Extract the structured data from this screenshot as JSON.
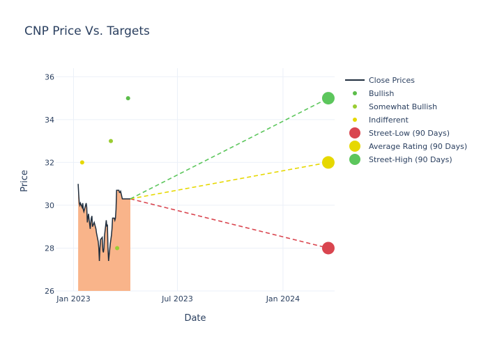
{
  "chart_data": {
    "type": "line",
    "title": "CNP Price Vs. Targets",
    "xlabel": "Date",
    "ylabel": "Price",
    "xlim": [
      "2022-12-01",
      "2024-03-31"
    ],
    "ylim": [
      26,
      36.4
    ],
    "x_ticks": [
      {
        "date": "2023-01-01",
        "label": "Jan 2023"
      },
      {
        "date": "2023-07-01",
        "label": "Jul 2023"
      },
      {
        "date": "2024-01-01",
        "label": "Jan 2024"
      }
    ],
    "y_ticks": [
      26,
      28,
      30,
      32,
      34,
      36
    ],
    "grid": true,
    "legend_position": "right",
    "colors": {
      "close": "#1f2d3d",
      "area": "#f9b48a",
      "bullish": "#5cbd4a",
      "somewhat_bullish": "#9acd32",
      "indifferent": "#e6d800",
      "street_low": "#d9454f",
      "average": "#e6d800",
      "street_high": "#5cc65c"
    },
    "close_prices": {
      "name": "Close Prices",
      "x": [
        "2023-01-09",
        "2023-01-10",
        "2023-01-11",
        "2023-01-12",
        "2023-01-13",
        "2023-01-16",
        "2023-01-17",
        "2023-01-18",
        "2023-01-19",
        "2023-01-20",
        "2023-01-23",
        "2023-01-24",
        "2023-01-25",
        "2023-01-26",
        "2023-01-27",
        "2023-01-30",
        "2023-01-31",
        "2023-02-01",
        "2023-02-02",
        "2023-02-03",
        "2023-02-06",
        "2023-02-07",
        "2023-02-08",
        "2023-02-09",
        "2023-02-10",
        "2023-02-13",
        "2023-02-14",
        "2023-02-15",
        "2023-02-16",
        "2023-02-17",
        "2023-02-20",
        "2023-02-21",
        "2023-02-22",
        "2023-02-23",
        "2023-02-24",
        "2023-02-27",
        "2023-02-28",
        "2023-03-01",
        "2023-03-02",
        "2023-03-03",
        "2023-03-06",
        "2023-03-07",
        "2023-03-08",
        "2023-03-09",
        "2023-03-10",
        "2023-03-13",
        "2023-03-14",
        "2023-03-15",
        "2023-03-16",
        "2023-03-17",
        "2023-03-20",
        "2023-03-21",
        "2023-03-22",
        "2023-03-23",
        "2023-03-24",
        "2023-03-27",
        "2023-03-28",
        "2023-03-29",
        "2023-03-30",
        "2023-03-31",
        "2023-04-03",
        "2023-04-04",
        "2023-04-05",
        "2023-04-06",
        "2023-04-07",
        "2023-04-10"
      ],
      "y": [
        31.0,
        30.5,
        30.1,
        30.0,
        30.1,
        29.9,
        30.1,
        29.8,
        29.7,
        29.8,
        30.1,
        29.9,
        29.2,
        29.4,
        29.6,
        28.9,
        29.2,
        29.4,
        29.5,
        29.0,
        29.2,
        29.1,
        29.0,
        28.9,
        28.7,
        28.3,
        28.0,
        27.4,
        28.0,
        28.4,
        28.5,
        27.9,
        27.8,
        28.0,
        28.6,
        29.3,
        29.0,
        29.1,
        28.0,
        27.4,
        28.2,
        28.4,
        28.6,
        28.9,
        29.4,
        29.4,
        29.3,
        29.4,
        29.8,
        30.7,
        30.7,
        30.7,
        30.6,
        30.6,
        30.65,
        30.3,
        30.3,
        30.3,
        30.3,
        30.3,
        30.3,
        30.3,
        30.3,
        30.3,
        30.3,
        30.3
      ]
    },
    "rating_points": [
      {
        "name": "Bullish",
        "x": "2023-04-06",
        "y": 35
      },
      {
        "name": "Somewhat Bullish",
        "x": "2023-03-07",
        "y": 33
      },
      {
        "name": "Somewhat Bullish",
        "x": "2023-03-18",
        "y": 28
      },
      {
        "name": "Indifferent",
        "x": "2023-01-16",
        "y": 32
      }
    ],
    "targets": {
      "start": {
        "x": "2023-04-10",
        "y": 30.3
      },
      "end_date": "2024-03-20",
      "street_low": {
        "name": "Street-Low (90 Days)",
        "y": 28
      },
      "average": {
        "name": "Average Rating (90 Days)",
        "y": 32
      },
      "street_high": {
        "name": "Street-High (90 Days)",
        "y": 35
      }
    },
    "legend": [
      {
        "label": "Close Prices",
        "kind": "line",
        "color_key": "close"
      },
      {
        "label": "Bullish",
        "kind": "dot-small",
        "color_key": "bullish"
      },
      {
        "label": "Somewhat Bullish",
        "kind": "dot-small",
        "color_key": "somewhat_bullish"
      },
      {
        "label": "Indifferent",
        "kind": "dot-small",
        "color_key": "indifferent"
      },
      {
        "label": "Street-Low (90 Days)",
        "kind": "dot-big",
        "color_key": "street_low"
      },
      {
        "label": "Average Rating (90 Days)",
        "kind": "dot-big",
        "color_key": "average"
      },
      {
        "label": "Street-High (90 Days)",
        "kind": "dot-big",
        "color_key": "street_high"
      }
    ]
  }
}
